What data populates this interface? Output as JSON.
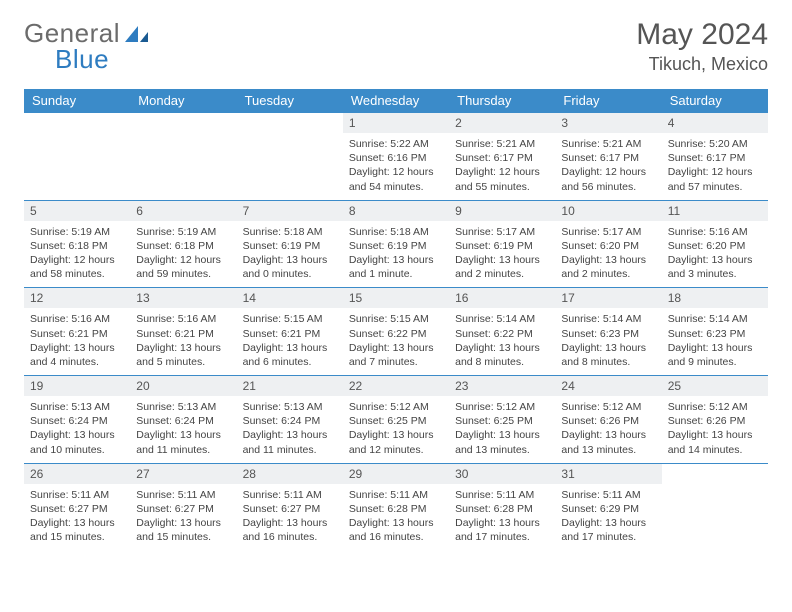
{
  "brand": {
    "name1": "General",
    "name2": "Blue"
  },
  "title": "May 2024",
  "location": "Tikuch, Mexico",
  "colors": {
    "header_bg": "#3b8bc9",
    "header_text": "#ffffff",
    "daynum_bg": "#eef0f2",
    "border": "#3b8bc9",
    "brand_gray": "#6b6b6b",
    "brand_blue": "#2e7cc0"
  },
  "weekdays": [
    "Sunday",
    "Monday",
    "Tuesday",
    "Wednesday",
    "Thursday",
    "Friday",
    "Saturday"
  ],
  "weeks": [
    [
      {
        "n": "",
        "lines": [
          "",
          "",
          ""
        ]
      },
      {
        "n": "",
        "lines": [
          "",
          "",
          ""
        ]
      },
      {
        "n": "",
        "lines": [
          "",
          "",
          ""
        ]
      },
      {
        "n": "1",
        "lines": [
          "Sunrise: 5:22 AM",
          "Sunset: 6:16 PM",
          "Daylight: 12 hours and 54 minutes."
        ]
      },
      {
        "n": "2",
        "lines": [
          "Sunrise: 5:21 AM",
          "Sunset: 6:17 PM",
          "Daylight: 12 hours and 55 minutes."
        ]
      },
      {
        "n": "3",
        "lines": [
          "Sunrise: 5:21 AM",
          "Sunset: 6:17 PM",
          "Daylight: 12 hours and 56 minutes."
        ]
      },
      {
        "n": "4",
        "lines": [
          "Sunrise: 5:20 AM",
          "Sunset: 6:17 PM",
          "Daylight: 12 hours and 57 minutes."
        ]
      }
    ],
    [
      {
        "n": "5",
        "lines": [
          "Sunrise: 5:19 AM",
          "Sunset: 6:18 PM",
          "Daylight: 12 hours and 58 minutes."
        ]
      },
      {
        "n": "6",
        "lines": [
          "Sunrise: 5:19 AM",
          "Sunset: 6:18 PM",
          "Daylight: 12 hours and 59 minutes."
        ]
      },
      {
        "n": "7",
        "lines": [
          "Sunrise: 5:18 AM",
          "Sunset: 6:19 PM",
          "Daylight: 13 hours and 0 minutes."
        ]
      },
      {
        "n": "8",
        "lines": [
          "Sunrise: 5:18 AM",
          "Sunset: 6:19 PM",
          "Daylight: 13 hours and 1 minute."
        ]
      },
      {
        "n": "9",
        "lines": [
          "Sunrise: 5:17 AM",
          "Sunset: 6:19 PM",
          "Daylight: 13 hours and 2 minutes."
        ]
      },
      {
        "n": "10",
        "lines": [
          "Sunrise: 5:17 AM",
          "Sunset: 6:20 PM",
          "Daylight: 13 hours and 2 minutes."
        ]
      },
      {
        "n": "11",
        "lines": [
          "Sunrise: 5:16 AM",
          "Sunset: 6:20 PM",
          "Daylight: 13 hours and 3 minutes."
        ]
      }
    ],
    [
      {
        "n": "12",
        "lines": [
          "Sunrise: 5:16 AM",
          "Sunset: 6:21 PM",
          "Daylight: 13 hours and 4 minutes."
        ]
      },
      {
        "n": "13",
        "lines": [
          "Sunrise: 5:16 AM",
          "Sunset: 6:21 PM",
          "Daylight: 13 hours and 5 minutes."
        ]
      },
      {
        "n": "14",
        "lines": [
          "Sunrise: 5:15 AM",
          "Sunset: 6:21 PM",
          "Daylight: 13 hours and 6 minutes."
        ]
      },
      {
        "n": "15",
        "lines": [
          "Sunrise: 5:15 AM",
          "Sunset: 6:22 PM",
          "Daylight: 13 hours and 7 minutes."
        ]
      },
      {
        "n": "16",
        "lines": [
          "Sunrise: 5:14 AM",
          "Sunset: 6:22 PM",
          "Daylight: 13 hours and 8 minutes."
        ]
      },
      {
        "n": "17",
        "lines": [
          "Sunrise: 5:14 AM",
          "Sunset: 6:23 PM",
          "Daylight: 13 hours and 8 minutes."
        ]
      },
      {
        "n": "18",
        "lines": [
          "Sunrise: 5:14 AM",
          "Sunset: 6:23 PM",
          "Daylight: 13 hours and 9 minutes."
        ]
      }
    ],
    [
      {
        "n": "19",
        "lines": [
          "Sunrise: 5:13 AM",
          "Sunset: 6:24 PM",
          "Daylight: 13 hours and 10 minutes."
        ]
      },
      {
        "n": "20",
        "lines": [
          "Sunrise: 5:13 AM",
          "Sunset: 6:24 PM",
          "Daylight: 13 hours and 11 minutes."
        ]
      },
      {
        "n": "21",
        "lines": [
          "Sunrise: 5:13 AM",
          "Sunset: 6:24 PM",
          "Daylight: 13 hours and 11 minutes."
        ]
      },
      {
        "n": "22",
        "lines": [
          "Sunrise: 5:12 AM",
          "Sunset: 6:25 PM",
          "Daylight: 13 hours and 12 minutes."
        ]
      },
      {
        "n": "23",
        "lines": [
          "Sunrise: 5:12 AM",
          "Sunset: 6:25 PM",
          "Daylight: 13 hours and 13 minutes."
        ]
      },
      {
        "n": "24",
        "lines": [
          "Sunrise: 5:12 AM",
          "Sunset: 6:26 PM",
          "Daylight: 13 hours and 13 minutes."
        ]
      },
      {
        "n": "25",
        "lines": [
          "Sunrise: 5:12 AM",
          "Sunset: 6:26 PM",
          "Daylight: 13 hours and 14 minutes."
        ]
      }
    ],
    [
      {
        "n": "26",
        "lines": [
          "Sunrise: 5:11 AM",
          "Sunset: 6:27 PM",
          "Daylight: 13 hours and 15 minutes."
        ]
      },
      {
        "n": "27",
        "lines": [
          "Sunrise: 5:11 AM",
          "Sunset: 6:27 PM",
          "Daylight: 13 hours and 15 minutes."
        ]
      },
      {
        "n": "28",
        "lines": [
          "Sunrise: 5:11 AM",
          "Sunset: 6:27 PM",
          "Daylight: 13 hours and 16 minutes."
        ]
      },
      {
        "n": "29",
        "lines": [
          "Sunrise: 5:11 AM",
          "Sunset: 6:28 PM",
          "Daylight: 13 hours and 16 minutes."
        ]
      },
      {
        "n": "30",
        "lines": [
          "Sunrise: 5:11 AM",
          "Sunset: 6:28 PM",
          "Daylight: 13 hours and 17 minutes."
        ]
      },
      {
        "n": "31",
        "lines": [
          "Sunrise: 5:11 AM",
          "Sunset: 6:29 PM",
          "Daylight: 13 hours and 17 minutes."
        ]
      },
      {
        "n": "",
        "lines": [
          "",
          "",
          ""
        ]
      }
    ]
  ]
}
